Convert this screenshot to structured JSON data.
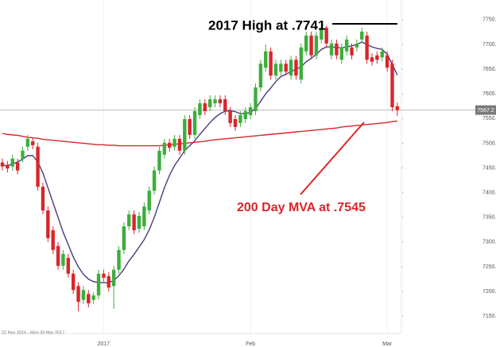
{
  "chart_data": {
    "type": "candlestick",
    "date_range": "22 Nov 2016 - Mon 20 Mar 2017",
    "categories": [
      null,
      null,
      null,
      null,
      null,
      null,
      null,
      null,
      null,
      null,
      null,
      null,
      null,
      null,
      null,
      null,
      null,
      null,
      null,
      null,
      "2017",
      null,
      null,
      null,
      null,
      null,
      null,
      null,
      null,
      null,
      null,
      null,
      null,
      null,
      null,
      null,
      null,
      null,
      null,
      null,
      null,
      null,
      null,
      null,
      null,
      null,
      null,
      null,
      null,
      "Feb",
      null,
      null,
      null,
      null,
      null,
      null,
      null,
      null,
      null,
      null,
      null,
      null,
      null,
      null,
      null,
      null,
      null,
      null,
      null,
      null,
      null,
      null,
      null,
      null,
      null,
      null,
      "Mar",
      null,
      null
    ],
    "open": [
      7461,
      7456,
      7453,
      7461,
      7469,
      7493,
      7504,
      7493,
      7412,
      7364,
      7324,
      7292,
      7252,
      7268,
      7236,
      7211,
      7183,
      7195,
      7183,
      7192,
      7236,
      7231,
      7211,
      7244,
      7284,
      7332,
      7356,
      7327,
      7332,
      7364,
      7404,
      7445,
      7477,
      7501,
      7493,
      7509,
      7485,
      7549,
      7517,
      7557,
      7581,
      7573,
      7581,
      7589,
      7589,
      7565,
      7549,
      7541,
      7549,
      7557,
      7565,
      7613,
      7653,
      7686,
      7637,
      7645,
      7661,
      7637,
      7669,
      7629,
      7686,
      7718,
      7678,
      7710,
      7734,
      7678,
      7702,
      7669,
      7686,
      7694,
      7694,
      7710,
      7718,
      7674,
      7678,
      7674,
      7678,
      7661,
      7575
    ],
    "high": [
      7469,
      7464,
      7477,
      7469,
      7493,
      7517,
      7512,
      7501,
      7420,
      7372,
      7332,
      7300,
      7284,
      7276,
      7244,
      7219,
      7211,
      7203,
      7199,
      7244,
      7244,
      7239,
      7252,
      7292,
      7340,
      7364,
      7364,
      7361,
      7380,
      7412,
      7453,
      7493,
      7509,
      7509,
      7517,
      7517,
      7557,
      7557,
      7573,
      7589,
      7589,
      7597,
      7597,
      7597,
      7597,
      7573,
      7557,
      7565,
      7573,
      7581,
      7621,
      7669,
      7700,
      7694,
      7669,
      7669,
      7669,
      7677,
      7677,
      7702,
      7726,
      7726,
      7726,
      7741,
      7738,
      7710,
      7710,
      7702,
      7718,
      7702,
      7710,
      7734,
      7726,
      7682,
      7686,
      7694,
      7686,
      7669,
      7583
    ],
    "low": [
      7445,
      7441,
      7445,
      7437,
      7461,
      7485,
      7488,
      7404,
      7356,
      7300,
      7276,
      7244,
      7244,
      7228,
      7195,
      7160,
      7175,
      7168,
      7175,
      7184,
      7220,
      7200,
      7165,
      7236,
      7276,
      7324,
      7316,
      7319,
      7324,
      7356,
      7396,
      7437,
      7469,
      7483,
      7485,
      7477,
      7477,
      7509,
      7509,
      7549,
      7557,
      7565,
      7573,
      7573,
      7557,
      7533,
      7525,
      7533,
      7541,
      7549,
      7557,
      7605,
      7645,
      7629,
      7629,
      7637,
      7637,
      7629,
      7629,
      7621,
      7678,
      7670,
      7670,
      7702,
      7694,
      7670,
      7670,
      7661,
      7678,
      7670,
      7686,
      7702,
      7661,
      7657,
      7661,
      7666,
      7645,
      7565,
      7555
    ],
    "close": [
      7453,
      7449,
      7469,
      7445,
      7485,
      7509,
      7496,
      7412,
      7364,
      7308,
      7284,
      7252,
      7276,
      7236,
      7203,
      7179,
      7203,
      7176,
      7192,
      7236,
      7228,
      7208,
      7244,
      7284,
      7332,
      7356,
      7324,
      7353,
      7372,
      7404,
      7445,
      7485,
      7501,
      7491,
      7509,
      7485,
      7549,
      7517,
      7565,
      7581,
      7565,
      7589,
      7589,
      7581,
      7565,
      7541,
      7533,
      7557,
      7565,
      7573,
      7613,
      7661,
      7686,
      7637,
      7661,
      7661,
      7645,
      7669,
      7637,
      7694,
      7718,
      7678,
      7718,
      7734,
      7702,
      7702,
      7678,
      7694,
      7710,
      7678,
      7702,
      7726,
      7669,
      7665,
      7669,
      7686,
      7653,
      7573,
      7567.2
    ],
    "up_color": "#3cae3c",
    "down_color": "#d9262c",
    "moving_averages": [
      {
        "color": "#4b3a7a",
        "values": [
          7455,
          7455,
          7458,
          7462,
          7468,
          7475,
          7475,
          7462,
          7440,
          7410,
          7380,
          7350,
          7320,
          7295,
          7270,
          7250,
          7235,
          7225,
          7220,
          7218,
          7218,
          7218,
          7222,
          7232,
          7245,
          7262,
          7275,
          7290,
          7305,
          7325,
          7350,
          7380,
          7410,
          7435,
          7455,
          7470,
          7485,
          7495,
          7505,
          7518,
          7530,
          7542,
          7552,
          7560,
          7565,
          7566,
          7564,
          7560,
          7560,
          7563,
          7570,
          7585,
          7600,
          7612,
          7625,
          7635,
          7640,
          7645,
          7650,
          7655,
          7665,
          7672,
          7680,
          7690,
          7695,
          7695,
          7694,
          7693,
          7695,
          7697,
          7700,
          7705,
          7700,
          7695,
          7692,
          7690,
          7680,
          7660,
          7638
        ]
      },
      {
        "color": "#d9262c",
        "values": [
          7520,
          7518,
          7517,
          7516,
          7514,
          7512,
          7511,
          7510,
          7508,
          7507,
          7506,
          7505,
          7504,
          7503,
          7502,
          7501,
          7500,
          7499,
          7498,
          7497,
          7497,
          7496,
          7496,
          7495,
          7495,
          7495,
          7495,
          7495,
          7495,
          7495,
          7495,
          7495,
          7496,
          7497,
          7498,
          7499,
          7500,
          7501,
          7502,
          7503,
          7504,
          7506,
          7507,
          7508,
          7509,
          7510,
          7511,
          7512,
          7513,
          7514,
          7515,
          7516,
          7517,
          7518,
          7519,
          7520,
          7521,
          7522,
          7523,
          7524,
          7525,
          7526,
          7527,
          7528,
          7529,
          7530,
          7531,
          7533,
          7534,
          7535,
          7536,
          7537,
          7538,
          7539,
          7540,
          7541,
          7542,
          7544,
          7545
        ]
      }
    ],
    "ylim": [
      7115,
      7790
    ],
    "yticks": [
      {
        "value": 7150,
        "label": "7150.0"
      },
      {
        "value": 7200,
        "label": "7200.0"
      },
      {
        "value": 7250,
        "label": "7250.0"
      },
      {
        "value": 7300,
        "label": "7300.0"
      },
      {
        "value": 7350,
        "label": "7350.0"
      },
      {
        "value": 7400,
        "label": "7400.0"
      },
      {
        "value": 7450,
        "label": "7450.0"
      },
      {
        "value": 7500,
        "label": "7500.0"
      },
      {
        "value": 7550,
        "label": "7550.0"
      },
      {
        "value": 7600,
        "label": "7600.0"
      },
      {
        "value": 7650,
        "label": "7650.0"
      },
      {
        "value": 7700,
        "label": "7700.0"
      },
      {
        "value": 7750,
        "label": "7750.0"
      }
    ],
    "annotations": [
      {
        "text": "2017 High at .7741",
        "color": "#000000"
      },
      {
        "text": "200 Day MVA at .7545",
        "color": "#d9262c"
      }
    ]
  }
}
